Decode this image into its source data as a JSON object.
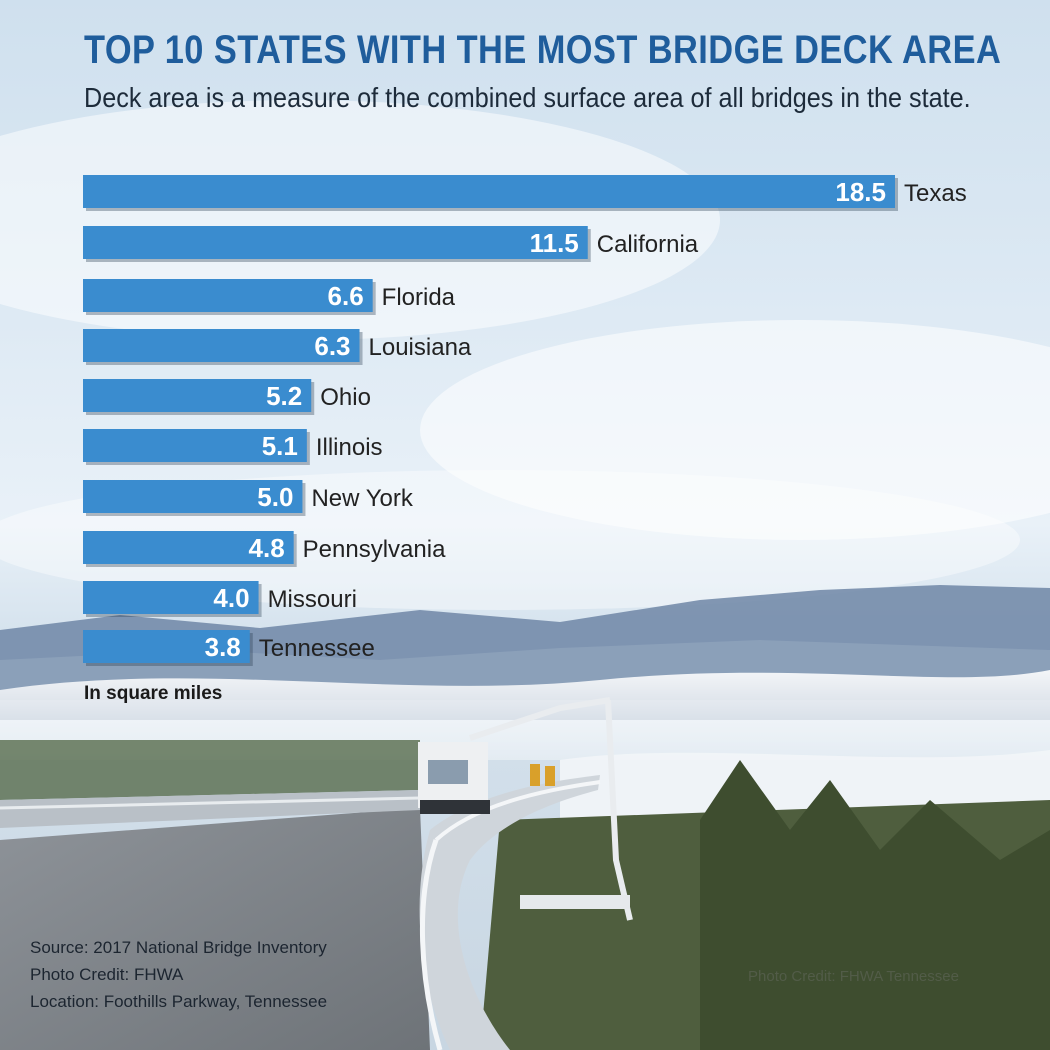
{
  "title": "TOP 10 STATES WITH THE MOST BRIDGE DECK AREA",
  "subtitle": "Deck area is a measure of the combined surface area of all bridges in the state.",
  "unit_note": "In square miles",
  "credits": {
    "source": "Source:  2017 National Bridge Inventory",
    "photo": "Photo Credit:  FHWA",
    "location": "Location:  Foothills Parkway, Tennessee"
  },
  "watermark": "Photo Credit: FHWA Tennessee",
  "colors": {
    "bar": "#3a8ccf",
    "title": "#1f5d9c",
    "value_text": "#ffffff",
    "label_text": "#222222"
  },
  "chart_data": {
    "type": "bar",
    "orientation": "horizontal",
    "title": "TOP 10 STATES WITH THE MOST BRIDGE DECK AREA",
    "xlabel": "In square miles",
    "ylabel": "",
    "xlim": [
      0,
      18.5
    ],
    "grid": false,
    "legend": "none",
    "categories": [
      "Texas",
      "California",
      "Florida",
      "Louisiana",
      "Ohio",
      "Illinois",
      "New York",
      "Pennsylvania",
      "Missouri",
      "Tennessee"
    ],
    "values": [
      18.5,
      11.5,
      6.6,
      6.3,
      5.2,
      5.1,
      5.0,
      4.8,
      4.0,
      3.8
    ],
    "value_labels": [
      "18.5",
      "11.5",
      "6.6",
      "6.3",
      "5.2",
      "5.1",
      "5.0",
      "4.8",
      "4.0",
      "3.8"
    ]
  }
}
